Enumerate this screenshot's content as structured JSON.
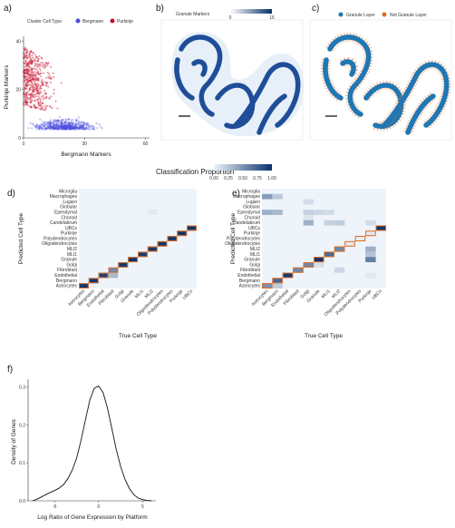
{
  "panel_labels": {
    "a": "a)",
    "b": "b)",
    "c": "c)",
    "d": "d)",
    "e": "e)",
    "f": "f)"
  },
  "colors": {
    "bergmann": "#4a4ae0",
    "purkinje": "#c8102e",
    "granule_layer": "#1f77b4",
    "not_granule_layer": "#e06c1e",
    "heat_low": "#eef4fa",
    "heat_high": "#08306b",
    "diag_border": "#e06c1e"
  },
  "chart_data": [
    {
      "id": "a",
      "type": "scatter",
      "xlabel": "Bergmann Markers",
      "ylabel": "Purkinje Markers",
      "xlim": [
        0,
        62
      ],
      "ylim": [
        0,
        42
      ],
      "xticks": [
        0,
        30,
        60
      ],
      "yticks": [
        0,
        20,
        40
      ],
      "legend": {
        "title": "Cluster Cell Type",
        "placement": "top",
        "entries": [
          "Bergmann",
          "Purkinje"
        ]
      },
      "series": [
        {
          "name": "Bergmann",
          "color": "#4a4ae0"
        },
        {
          "name": "Purkinje",
          "color": "#c8102e"
        }
      ]
    },
    {
      "id": "b",
      "type": "scatter",
      "legend": {
        "title": "Granule Markers",
        "placement": "top",
        "range": [
          0,
          15
        ],
        "ticks": [
          0,
          15
        ]
      },
      "xlabel": "",
      "ylabel": ""
    },
    {
      "id": "c",
      "type": "scatter",
      "legend": {
        "placement": "top",
        "entries": [
          "Granule Layer",
          "Not Granule Layer"
        ]
      },
      "xlabel": "",
      "ylabel": ""
    },
    {
      "id": "legend_de",
      "type": "heatmap",
      "title": "Classification Proportion",
      "ticks": [
        "0.00",
        "0.25",
        "0.50",
        "0.75",
        "1.00"
      ]
    },
    {
      "id": "d",
      "type": "heatmap",
      "xlabel": "True Cell Type",
      "ylabel": "Predicted Cell Type",
      "x_categories": [
        "Astrocytes",
        "Bergmann",
        "Endothelial",
        "Fibroblast",
        "Golgi",
        "Granule",
        "MLI1",
        "MLI2",
        "Oligodendrocytes",
        "Polydendrocytes",
        "Purkinje",
        "UBCs"
      ],
      "y_categories": [
        "Microglia",
        "Macrophages",
        "Lugaro",
        "Globular",
        "Ependymal",
        "Choroid",
        "Candelabrum",
        "UBCs",
        "Purkinje",
        "Polydendrocytes",
        "Oligodendrocytes",
        "MLI2",
        "MLI1",
        "Granule",
        "Golgi",
        "Fibroblast",
        "Endothelial",
        "Bergmann",
        "Astrocytes"
      ],
      "cells": [
        [
          "Astrocytes",
          "Astrocytes",
          0.98
        ],
        [
          "Bergmann",
          "Bergmann",
          0.97
        ],
        [
          "Endothelial",
          "Endothelial",
          0.92
        ],
        [
          "Endothelial",
          "Fibroblast",
          0.3
        ],
        [
          "Fibroblast",
          "Fibroblast",
          0.55
        ],
        [
          "Golgi",
          "Golgi",
          0.96
        ],
        [
          "Granule",
          "Granule",
          0.99
        ],
        [
          "MLI1",
          "MLI1",
          0.95
        ],
        [
          "MLI2",
          "MLI2",
          0.96
        ],
        [
          "Oligodendrocytes",
          "Oligodendrocytes",
          0.98
        ],
        [
          "Polydendrocytes",
          "Polydendrocytes",
          0.97
        ],
        [
          "Purkinje",
          "Purkinje",
          0.98
        ],
        [
          "UBCs",
          "UBCs",
          0.98
        ],
        [
          "Ependymal",
          "MLI2",
          0.05
        ]
      ]
    },
    {
      "id": "e",
      "type": "heatmap",
      "xlabel": "True Cell Type",
      "ylabel": "Predicted Cell Type",
      "x_categories": [
        "Astrocytes",
        "Bergmann",
        "Endothelial",
        "Fibroblast",
        "Golgi",
        "Granule",
        "MLI1",
        "MLI2",
        "Oligodendrocytes",
        "Polydendrocytes",
        "Purkinje",
        "UBCs"
      ],
      "y_categories": [
        "Microglia",
        "Macrophages",
        "Lugaro",
        "Globular",
        "Ependymal",
        "Choroid",
        "Candelabrum",
        "UBCs",
        "Purkinje",
        "Polydendrocytes",
        "Oligodendrocytes",
        "MLI2",
        "MLI1",
        "Granule",
        "Golgi",
        "Fibroblast",
        "Endothelial",
        "Bergmann",
        "Astrocytes"
      ],
      "cells": [
        [
          "Macrophages",
          "Astrocytes",
          0.45
        ],
        [
          "Macrophages",
          "Bergmann",
          0.22
        ],
        [
          "Lugaro",
          "Golgi",
          0.12
        ],
        [
          "Ependymal",
          "Astrocytes",
          0.35
        ],
        [
          "Ependymal",
          "Bergmann",
          0.3
        ],
        [
          "Ependymal",
          "Golgi",
          0.18
        ],
        [
          "Ependymal",
          "Granule",
          0.15
        ],
        [
          "Ependymal",
          "MLI1",
          0.12
        ],
        [
          "Choroid",
          "Golgi",
          0.08
        ],
        [
          "Candelabrum",
          "Golgi",
          0.35
        ],
        [
          "Candelabrum",
          "MLI1",
          0.18
        ],
        [
          "Candelabrum",
          "MLI2",
          0.2
        ],
        [
          "Candelabrum",
          "Purkinje",
          0.12
        ],
        [
          "UBCs",
          "UBCs",
          0.97
        ],
        [
          "Purkinje",
          "Purkinje",
          0.06
        ],
        [
          "Polydendrocytes",
          "Polydendrocytes",
          0.04
        ],
        [
          "Oligodendrocytes",
          "Oligodendrocytes",
          0.05
        ],
        [
          "MLI2",
          "MLI2",
          0.55
        ],
        [
          "MLI2",
          "Purkinje",
          0.35
        ],
        [
          "MLI1",
          "MLI1",
          0.7
        ],
        [
          "MLI1",
          "Purkinje",
          0.25
        ],
        [
          "Granule",
          "Granule",
          0.98
        ],
        [
          "Granule",
          "Purkinje",
          0.6
        ],
        [
          "Golgi",
          "Golgi",
          0.55
        ],
        [
          "Golgi",
          "Granule",
          0.1
        ],
        [
          "Fibroblast",
          "Fibroblast",
          0.55
        ],
        [
          "Fibroblast",
          "MLI2",
          0.15
        ],
        [
          "Endothelial",
          "Endothelial",
          0.95
        ],
        [
          "Endothelial",
          "Purkinje",
          0.06
        ],
        [
          "Bergmann",
          "Bergmann",
          0.72
        ],
        [
          "Astrocytes",
          "Astrocytes",
          0.5
        ],
        [
          "Astrocytes",
          "Bergmann",
          0.2
        ]
      ],
      "diagonal_outline": true
    },
    {
      "id": "f",
      "type": "line",
      "xlabel": "Log Ratio of Gene Expression by Platform",
      "ylabel": "Density of Genes",
      "xlim": [
        -8,
        6.5
      ],
      "ylim": [
        0,
        0.32
      ],
      "xticks": [
        -5,
        0,
        5
      ],
      "yticks": [
        0.0,
        0.1,
        0.2,
        0.3
      ],
      "ytick_labels": [
        "0.0",
        "0.1",
        "0.2",
        "0.3"
      ],
      "x": [
        -7.5,
        -7,
        -6.5,
        -6,
        -5.5,
        -5,
        -4.5,
        -4,
        -3.5,
        -3,
        -2.5,
        -2,
        -1.5,
        -1,
        -0.5,
        0,
        0.5,
        1,
        1.5,
        2,
        2.5,
        3,
        3.5,
        4,
        4.5,
        5,
        5.5,
        6
      ],
      "y": [
        0.0,
        0.004,
        0.01,
        0.016,
        0.022,
        0.027,
        0.033,
        0.042,
        0.058,
        0.08,
        0.112,
        0.158,
        0.212,
        0.265,
        0.296,
        0.302,
        0.285,
        0.245,
        0.19,
        0.136,
        0.09,
        0.056,
        0.032,
        0.016,
        0.007,
        0.003,
        0.001,
        0.0
      ]
    }
  ]
}
